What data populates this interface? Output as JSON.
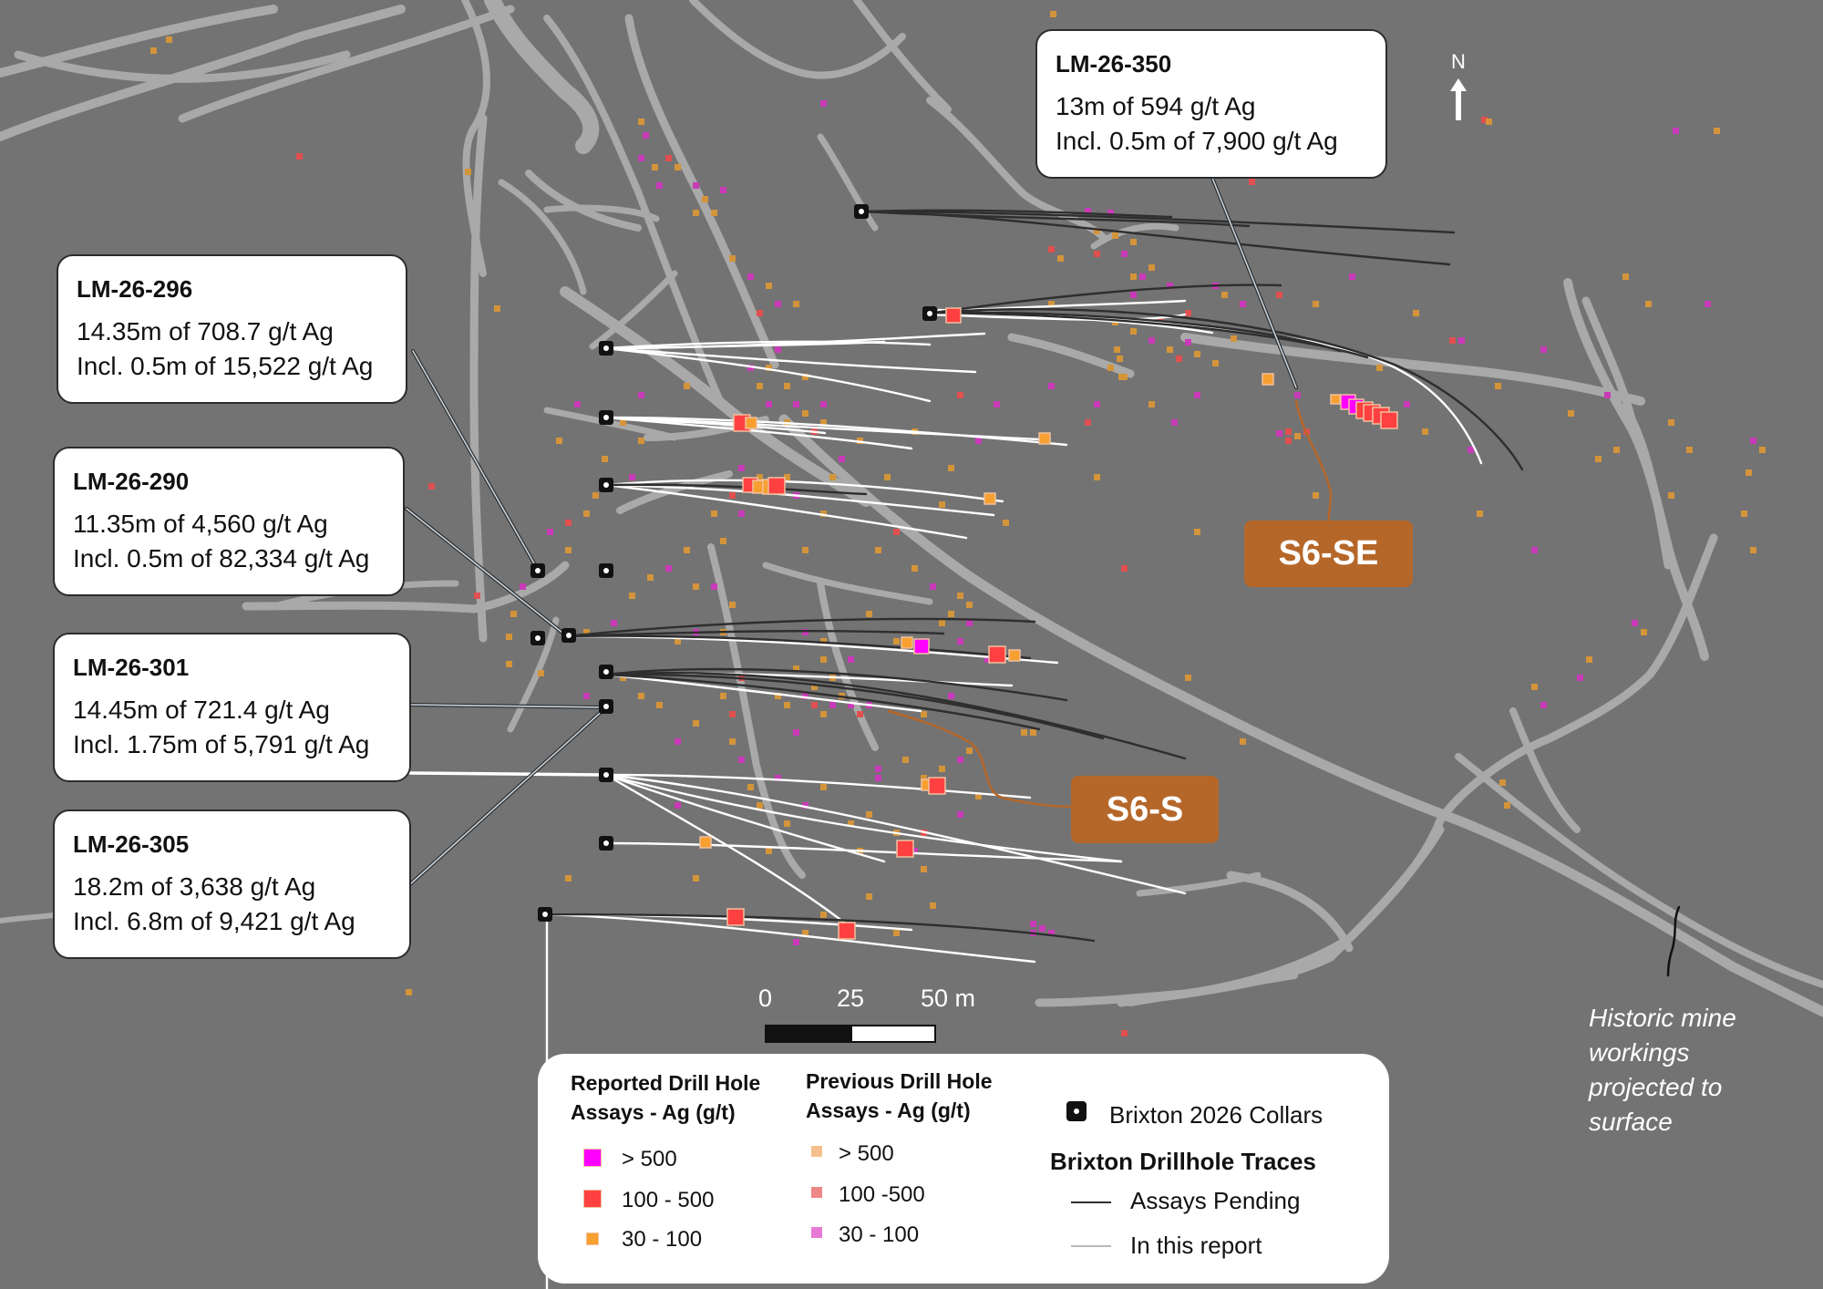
{
  "callouts": [
    {
      "id": "LM-26-350",
      "line1": "13m of 594 g/t Ag",
      "line2": "Incl. 0.5m of 7,900 g/t Ag"
    },
    {
      "id": "LM-26-296",
      "line1": "14.35m of 708.7 g/t Ag",
      "line2": "Incl. 0.5m of 15,522 g/t Ag"
    },
    {
      "id": "LM-26-290",
      "line1": "11.35m of 4,560 g/t Ag",
      "line2": "Incl. 0.5m of 82,334 g/t Ag"
    },
    {
      "id": "LM-26-301",
      "line1": "14.45m of 721.4 g/t Ag",
      "line2": "Incl. 1.75m of 5,791 g/t Ag"
    },
    {
      "id": "LM-26-305",
      "line1": "18.2m of 3,638 g/t Ag",
      "line2": "Incl. 6.8m of 9,421 g/t Ag"
    }
  ],
  "zones": {
    "se": "S6-SE",
    "s": "S6-S"
  },
  "scale": {
    "t0": "0",
    "t25": "25",
    "t50": "50 m"
  },
  "north": "N",
  "historic_label": {
    "l1": "Historic mine",
    "l2": "workings",
    "l3": "projected to",
    "l4": "surface"
  },
  "legend": {
    "reported_title_1": "Reported Drill Hole",
    "reported_title_2": "Assays - Ag (g/t)",
    "reported": [
      {
        "label": "> 500",
        "color": "#ff00ff"
      },
      {
        "label": "100 - 500",
        "color": "#ff4040"
      },
      {
        "label": "30 - 100",
        "color": "#f7a030"
      }
    ],
    "previous_title_1": "Previous Drill Hole",
    "previous_title_2": "Assays - Ag (g/t)",
    "previous": [
      {
        "label": "> 500",
        "color": "#f6c08c"
      },
      {
        "label": "100 -500",
        "color": "#ee8888"
      },
      {
        "label": "30 - 100",
        "color": "#e87ad6"
      }
    ],
    "collars": "Brixton 2026 Collars",
    "traces_title": "Brixton Drillhole Traces",
    "pending": "Assays Pending",
    "in_report": "In this report"
  },
  "colors": {
    "background": "#737373",
    "workings": "#a9a9a9",
    "trace_reported": "#ffffff",
    "trace_pending": "#2e2e2e",
    "zone_box": "#b5672a",
    "previous_orange": "#d4943a",
    "previous_magenta": "#c93ab8"
  }
}
